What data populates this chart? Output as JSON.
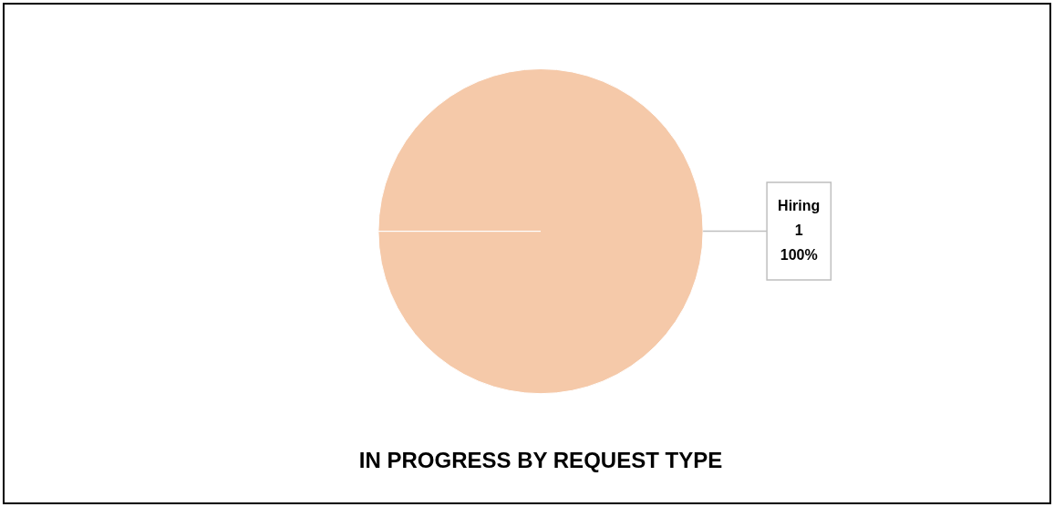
{
  "chart_data": {
    "type": "pie",
    "title": "IN PROGRESS BY REQUEST TYPE",
    "categories": [
      "Hiring"
    ],
    "values": [
      1
    ],
    "colors": [
      "#f5c9a9"
    ],
    "data_labels": true,
    "annotations": [
      "100%"
    ]
  }
}
